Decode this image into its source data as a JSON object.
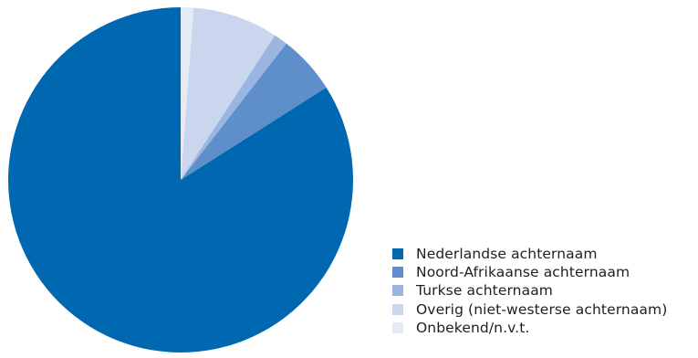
{
  "chart_data": {
    "type": "pie",
    "title": "",
    "slices": [
      {
        "label": "Nederlandse achternaam",
        "value": 84.0,
        "color": "#0067b1"
      },
      {
        "label": "Noord-Afrikaanse achternaam",
        "value": 5.5,
        "color": "#5f8fcb"
      },
      {
        "label": "Turkse achternaam",
        "value": 1.3,
        "color": "#9ab5e0"
      },
      {
        "label": "Overig (niet-westerse achternaam)",
        "value": 8.0,
        "color": "#c9d6ee"
      },
      {
        "label": "Onbekend/n.v.t.",
        "value": 1.2,
        "color": "#e4ebf7"
      }
    ],
    "legend_position": "bottom-right"
  }
}
